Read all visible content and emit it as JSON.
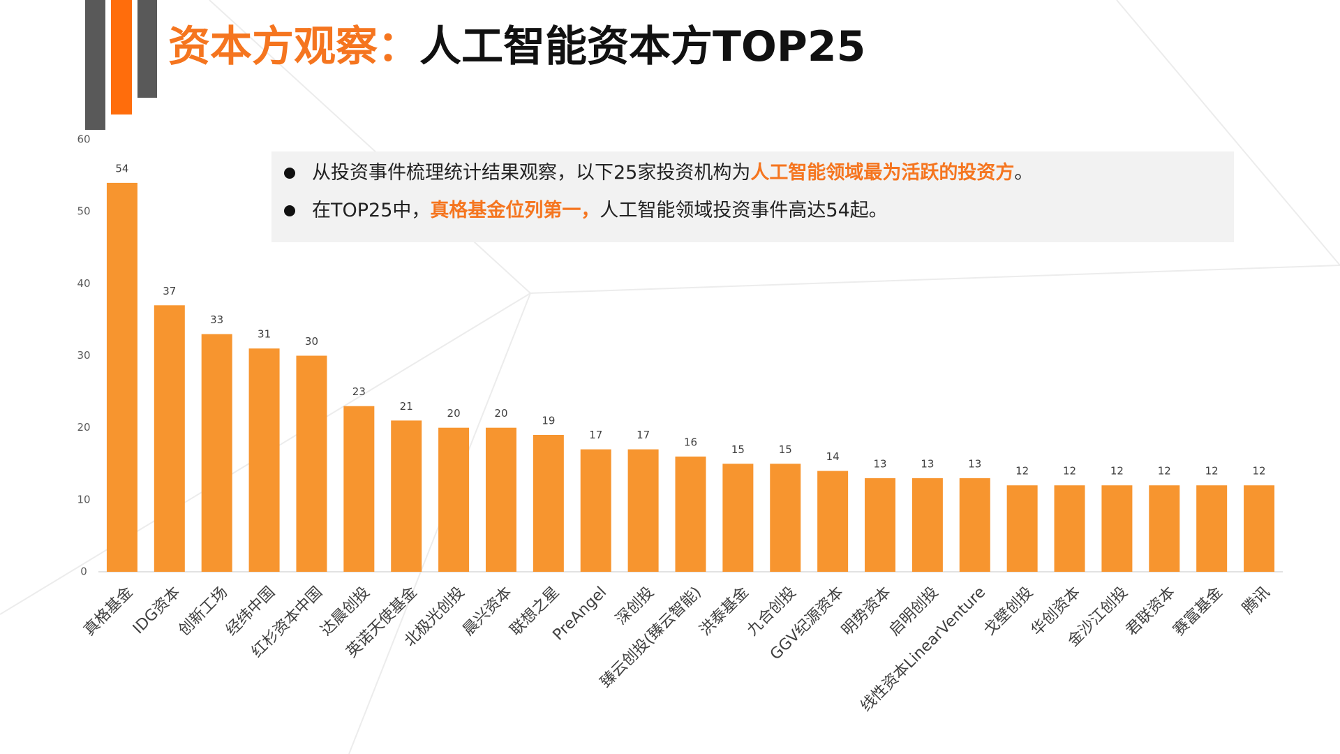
{
  "header": {
    "title_highlight": "资本方观察：",
    "title": "人工智能资本方TOP25"
  },
  "notes": [
    [
      {
        "text": "从投资事件梳理统计结果观察，以下25家投资机构为",
        "highlight": false
      },
      {
        "text": "人工智能领域最为活跃的投资方",
        "highlight": true
      },
      {
        "text": "。",
        "highlight": false
      }
    ],
    [
      {
        "text": "在TOP25中，",
        "highlight": false
      },
      {
        "text": "真格基金位列第一，",
        "highlight": true
      },
      {
        "text": "人工智能领域投资事件高达54起。",
        "highlight": false
      }
    ]
  ],
  "chart_data": {
    "type": "bar",
    "categories": [
      "真格基金",
      "IDG资本",
      "创新工场",
      "经纬中国",
      "红杉资本中国",
      "达晨创投",
      "英诺天使基金",
      "北极光创投",
      "晨兴资本",
      "联想之星",
      "PreAngel",
      "深创投",
      "臻云创投(臻云智能)",
      "洪泰基金",
      "九合创投",
      "GGV纪源资本",
      "明势资本",
      "启明创投",
      "线性资本LinearVenture",
      "戈壁创投",
      "华创资本",
      "金沙江创投",
      "君联资本",
      "赛富基金",
      "腾讯"
    ],
    "values": [
      54,
      37,
      33,
      31,
      30,
      23,
      21,
      20,
      20,
      19,
      17,
      17,
      16,
      15,
      15,
      14,
      13,
      13,
      13,
      12,
      12,
      12,
      12,
      12,
      12
    ],
    "color": "#f7952f",
    "ylim": [
      0,
      60
    ],
    "yticks": [
      0,
      10,
      20,
      30,
      40,
      50,
      60
    ]
  }
}
